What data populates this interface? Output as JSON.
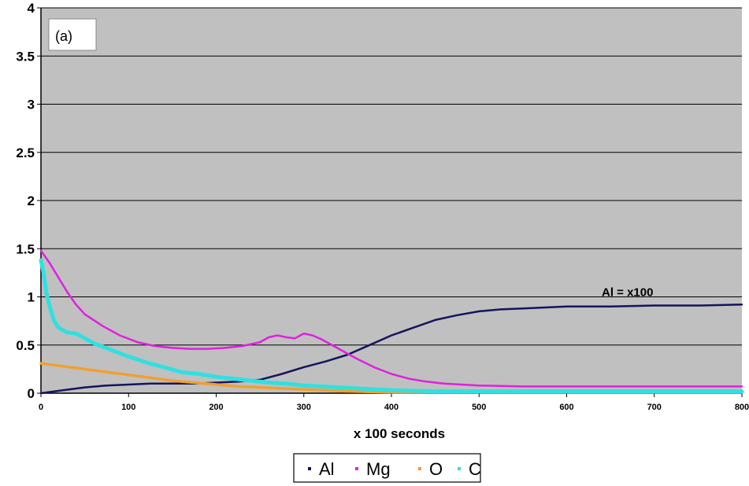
{
  "chart_data": {
    "type": "line",
    "panel_label": "(a)",
    "xlabel": "x 100 seconds",
    "ylabel": "",
    "xlim": [
      0,
      800
    ],
    "ylim": [
      0,
      4
    ],
    "x_ticks": [
      0,
      100,
      200,
      300,
      400,
      500,
      600,
      700,
      800
    ],
    "y_ticks": [
      0,
      0.5,
      1,
      1.5,
      2,
      2.5,
      3,
      3.5,
      4
    ],
    "y_tick_labels": [
      "0",
      "0.5",
      "1",
      "1.5",
      "2",
      "2.5",
      "3",
      "3.5",
      "4"
    ],
    "grid": "horizontal",
    "plot_background": "#c0c0c0",
    "legend_position": "bottom",
    "annotations": [
      {
        "text": "Al = x100",
        "x": 640,
        "y": 1.05
      }
    ],
    "series": [
      {
        "name": "Al",
        "color": "#14145e",
        "x": [
          0,
          25,
          50,
          75,
          100,
          125,
          150,
          175,
          200,
          225,
          250,
          275,
          300,
          325,
          350,
          375,
          400,
          425,
          450,
          475,
          500,
          525,
          550,
          575,
          600,
          650,
          700,
          750,
          800
        ],
        "y": [
          0.0,
          0.03,
          0.06,
          0.08,
          0.09,
          0.1,
          0.1,
          0.1,
          0.11,
          0.12,
          0.14,
          0.2,
          0.27,
          0.33,
          0.4,
          0.5,
          0.6,
          0.68,
          0.76,
          0.81,
          0.85,
          0.87,
          0.88,
          0.89,
          0.9,
          0.9,
          0.91,
          0.91,
          0.92
        ]
      },
      {
        "name": "Mg",
        "color": "#e020e0",
        "x": [
          0,
          10,
          20,
          30,
          40,
          50,
          70,
          90,
          110,
          130,
          150,
          170,
          190,
          210,
          230,
          250,
          260,
          270,
          280,
          290,
          300,
          310,
          320,
          340,
          360,
          380,
          400,
          420,
          440,
          460,
          480,
          500,
          550,
          600,
          650,
          700,
          750,
          800
        ],
        "y": [
          1.48,
          1.35,
          1.2,
          1.05,
          0.92,
          0.82,
          0.7,
          0.6,
          0.53,
          0.49,
          0.47,
          0.46,
          0.46,
          0.47,
          0.49,
          0.53,
          0.58,
          0.6,
          0.58,
          0.57,
          0.62,
          0.6,
          0.56,
          0.46,
          0.36,
          0.27,
          0.2,
          0.15,
          0.12,
          0.1,
          0.09,
          0.08,
          0.07,
          0.07,
          0.07,
          0.07,
          0.07,
          0.07
        ]
      },
      {
        "name": "O",
        "color": "#f0a030",
        "x": [
          0,
          25,
          50,
          75,
          100,
          125,
          150,
          175,
          200,
          225,
          250,
          275,
          300,
          325,
          350,
          375,
          400,
          450,
          500,
          600,
          700,
          800
        ],
        "y": [
          0.31,
          0.28,
          0.25,
          0.22,
          0.19,
          0.16,
          0.13,
          0.11,
          0.09,
          0.07,
          0.06,
          0.05,
          0.04,
          0.03,
          0.02,
          0.015,
          0.01,
          0.01,
          0.01,
          0.01,
          0.01,
          0.01
        ]
      },
      {
        "name": "C",
        "color": "#30e0e0",
        "x": [
          0,
          3,
          6,
          10,
          15,
          20,
          30,
          40,
          50,
          60,
          80,
          100,
          120,
          140,
          160,
          180,
          200,
          220,
          240,
          260,
          280,
          300,
          320,
          340,
          360,
          380,
          400,
          450,
          500,
          600,
          700,
          800
        ],
        "y": [
          1.38,
          1.25,
          1.05,
          0.9,
          0.75,
          0.68,
          0.63,
          0.62,
          0.57,
          0.52,
          0.45,
          0.38,
          0.32,
          0.27,
          0.22,
          0.2,
          0.17,
          0.15,
          0.13,
          0.11,
          0.1,
          0.08,
          0.07,
          0.06,
          0.05,
          0.04,
          0.03,
          0.02,
          0.02,
          0.02,
          0.02,
          0.02
        ]
      }
    ]
  }
}
